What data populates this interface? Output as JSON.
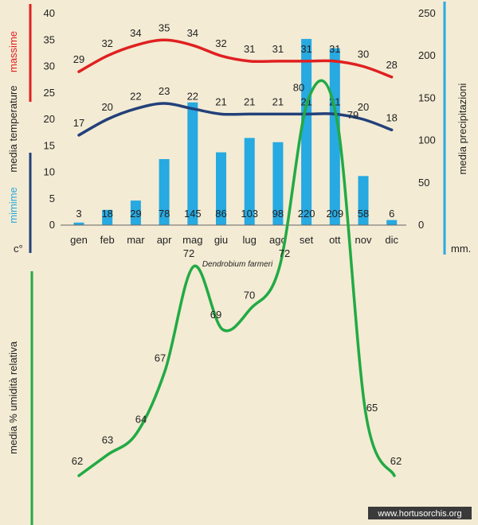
{
  "species": "Dendrobium farmeri",
  "watermark": "www.hortusorchis.org",
  "colors": {
    "max_temp": "#e02020",
    "min_temp": "#23407a",
    "precip": "#27a9e1",
    "humidity": "#22aa44",
    "axis": "#333333"
  },
  "chart_data": [
    {
      "type": "bar+line",
      "categories": [
        "gen",
        "feb",
        "mar",
        "apr",
        "mag",
        "giu",
        "lug",
        "ago",
        "set",
        "ott",
        "nov",
        "dic"
      ],
      "left_axis": {
        "ylim": [
          0,
          40
        ],
        "ticks": [
          0,
          5,
          10,
          15,
          20,
          25,
          30,
          35,
          40
        ],
        "unit": "c°",
        "label_max": "massime",
        "label_temp": "media  temperature",
        "label_min": "mimime"
      },
      "right_axis": {
        "ylim": [
          0,
          250
        ],
        "ticks": [
          0,
          50,
          100,
          150,
          200,
          250
        ],
        "unit": "mm.",
        "label": "media  precipitazioni"
      },
      "series": [
        {
          "name": "massime",
          "type": "line",
          "axis": "left",
          "values": [
            29,
            32,
            34,
            35,
            34,
            32,
            31,
            31,
            31,
            31,
            30,
            28
          ]
        },
        {
          "name": "mimime",
          "type": "line",
          "axis": "left",
          "values": [
            17,
            20,
            22,
            23,
            22,
            21,
            21,
            21,
            21,
            21,
            20,
            18
          ]
        },
        {
          "name": "precipitazioni",
          "type": "bar",
          "axis": "right",
          "values": [
            3,
            18,
            29,
            78,
            145,
            86,
            103,
            98,
            220,
            209,
            58,
            6
          ]
        }
      ]
    },
    {
      "type": "line",
      "title": "media %  umidità relativa",
      "categories": [
        "gen",
        "feb",
        "mar",
        "apr",
        "mag",
        "giu",
        "lug",
        "ago",
        "set",
        "ott",
        "nov",
        "dic"
      ],
      "values": [
        62,
        63,
        64,
        67,
        72,
        69,
        70,
        72,
        80,
        79,
        65,
        62
      ]
    }
  ]
}
